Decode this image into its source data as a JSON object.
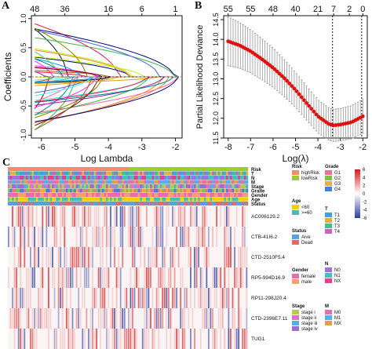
{
  "panels": {
    "a": {
      "label": "A"
    },
    "b": {
      "label": "B"
    },
    "c": {
      "label": "C"
    }
  },
  "chart_data": [
    {
      "type": "line",
      "panel": "A",
      "xlabel": "Log Lambda",
      "ylabel": "Coefficients",
      "xlim": [
        -6.3,
        -1.8
      ],
      "ylim": [
        -1.05,
        1.05
      ],
      "x_ticks": [
        -6,
        -5,
        -4,
        -3,
        -2
      ],
      "y_ticks": [
        -1.0,
        -0.5,
        0.0,
        0.5,
        1.0
      ],
      "top_ticks_x": [
        -6.2,
        -5.3,
        -4.0,
        -3.0,
        -2.0
      ],
      "top_tick_labels": [
        "48",
        "36",
        "16",
        "6",
        "1"
      ],
      "n_paths": 48,
      "grid": false
    },
    {
      "type": "line",
      "panel": "B",
      "xlabel": "Log(λ)",
      "ylabel": "Partial Likelihood Deviance",
      "xlim": [
        -8.2,
        -1.8
      ],
      "ylim": [
        11.5,
        14.6
      ],
      "x_ticks": [
        -8,
        -7,
        -6,
        -5,
        -4,
        -3,
        -2
      ],
      "y_ticks": [
        11.5,
        12.0,
        12.5,
        13.0,
        13.5,
        14.0,
        14.5
      ],
      "top_ticks_x": [
        -8,
        -7,
        -6,
        -5,
        -4,
        -3.3,
        -2.6,
        -2.0
      ],
      "top_tick_labels": [
        "55",
        "55",
        "48",
        "40",
        "21",
        "7",
        "2",
        "0"
      ],
      "vlines": [
        -3.35,
        -2.05
      ],
      "series": [
        {
          "x": [
            -8.0,
            -7.5,
            -7.0,
            -6.5,
            -6.0,
            -5.5,
            -5.0,
            -4.5,
            -4.0,
            -3.5,
            -3.3,
            -3.0,
            -2.5,
            -2.0
          ],
          "values": [
            13.95,
            13.85,
            13.7,
            13.5,
            13.28,
            13.02,
            12.72,
            12.38,
            12.05,
            11.85,
            11.82,
            11.84,
            11.9,
            12.05
          ],
          "error": [
            0.62,
            0.58,
            0.55,
            0.52,
            0.5,
            0.47,
            0.45,
            0.43,
            0.42,
            0.41,
            0.41,
            0.41,
            0.42,
            0.43
          ]
        }
      ],
      "grid": false
    },
    {
      "type": "heatmap",
      "panel": "C",
      "annotation_rows": [
        "Risk",
        "T",
        "N",
        "M",
        "Stage",
        "Grade",
        "Gender",
        "Age",
        "Status"
      ],
      "gene_rows": [
        "AC006129.2",
        "CTB-41I6.2",
        "CTD-2510F5.4",
        "RP5-994D16.9",
        "RP11-298J20.4",
        "CTD-2396E7.11",
        "TUG1"
      ],
      "colorbar_ticks": [
        6,
        4,
        2,
        0,
        -2,
        -4,
        -6
      ],
      "colorbar_colors": {
        "high": "#d7191c",
        "mid": "#ffffff",
        "low": "#2c3e9e"
      },
      "legends": [
        {
          "title": "Risk",
          "items": [
            {
              "label": "highRisk",
              "color": "#f28c6b"
            },
            {
              "label": "lowRisk",
              "color": "#9acd32"
            }
          ]
        },
        {
          "title": "Age",
          "items": [
            {
              "label": "<60",
              "color": "#f0d000"
            },
            {
              "label": ">=60",
              "color": "#40c0b0"
            }
          ]
        },
        {
          "title": "Status",
          "items": [
            {
              "label": "Aive",
              "color": "#5aa0e0"
            },
            {
              "label": "Dead",
              "color": "#e86868"
            }
          ]
        },
        {
          "title": "Gender",
          "items": [
            {
              "label": "female",
              "color": "#e86ab0"
            },
            {
              "label": "male",
              "color": "#f2a070"
            }
          ]
        },
        {
          "title": "Stage",
          "items": [
            {
              "label": "stage i",
              "color": "#b0d040"
            },
            {
              "label": "stage ii",
              "color": "#e070d0"
            },
            {
              "label": "stage iii",
              "color": "#5aaae8"
            },
            {
              "label": "stage iv",
              "color": "#a06ad0"
            }
          ]
        },
        {
          "title": "Grade",
          "items": [
            {
              "label": "G1",
              "color": "#f07090"
            },
            {
              "label": "G2",
              "color": "#80c050"
            },
            {
              "label": "G3",
              "color": "#e8b040"
            },
            {
              "label": "G4",
              "color": "#4080e0"
            }
          ]
        },
        {
          "title": "T",
          "items": [
            {
              "label": "T1",
              "color": "#40a0e0"
            },
            {
              "label": "T2",
              "color": "#e0b040"
            },
            {
              "label": "T3",
              "color": "#40c090"
            },
            {
              "label": "T4",
              "color": "#d060c0"
            }
          ]
        },
        {
          "title": "N",
          "items": [
            {
              "label": "N0",
              "color": "#a070e0"
            },
            {
              "label": "N1",
              "color": "#40c0c0"
            },
            {
              "label": "NX",
              "color": "#e04090"
            }
          ]
        },
        {
          "title": "M",
          "items": [
            {
              "label": "M0",
              "color": "#e070b0"
            },
            {
              "label": "M1",
              "color": "#50b0f0"
            },
            {
              "label": "MX",
              "color": "#e0a050"
            }
          ]
        }
      ]
    }
  ]
}
